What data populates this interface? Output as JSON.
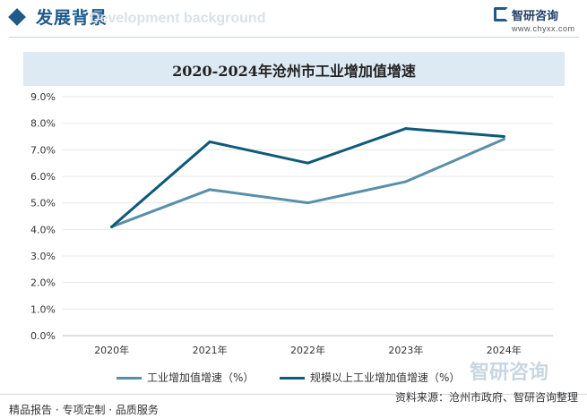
{
  "header": {
    "section_title": "发展背景",
    "ghost_text": "Development background",
    "brand_name": "智研咨询",
    "brand_url": "www.chyxx.com"
  },
  "footer": {
    "left_text": "精品报告 · 专项定制 · 品质服务",
    "source_text": "资料来源：沧州市政府、智研咨询整理",
    "watermark_brand": "智研咨询"
  },
  "colors": {
    "brand": "#1e5a8c",
    "series_1": "#5a8fa8",
    "series_2": "#0e5a7a",
    "title_band": "#dde9f3"
  },
  "chart_data": {
    "type": "line",
    "title": "2020-2024年沧州市工业增加值增速",
    "x": [
      "2020年",
      "2021年",
      "2022年",
      "2023年",
      "2024年"
    ],
    "ylim": [
      0.0,
      9.0
    ],
    "yticks": [
      "9.0%",
      "8.0%",
      "7.0%",
      "6.0%",
      "5.0%",
      "4.0%",
      "3.0%",
      "2.0%",
      "1.0%",
      "0.0%"
    ],
    "grid": true,
    "legend_position": "bottom",
    "series": [
      {
        "name": "工业增加值增速（%）",
        "values": [
          4.1,
          5.5,
          5.0,
          5.8,
          7.4
        ]
      },
      {
        "name": "规模以上工业增加值增速（%）",
        "values": [
          4.1,
          7.3,
          6.5,
          7.8,
          7.5
        ]
      }
    ]
  }
}
